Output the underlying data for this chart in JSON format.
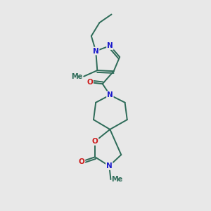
{
  "bg_color": "#e8e8e8",
  "bond_color": "#2d6b58",
  "atom_colors": {
    "N": "#1a1acc",
    "O": "#cc1a1a",
    "C": "#2d6b58"
  },
  "bond_width": 1.4,
  "font_size_atom": 7.5,
  "font_size_methyl": 7.0
}
